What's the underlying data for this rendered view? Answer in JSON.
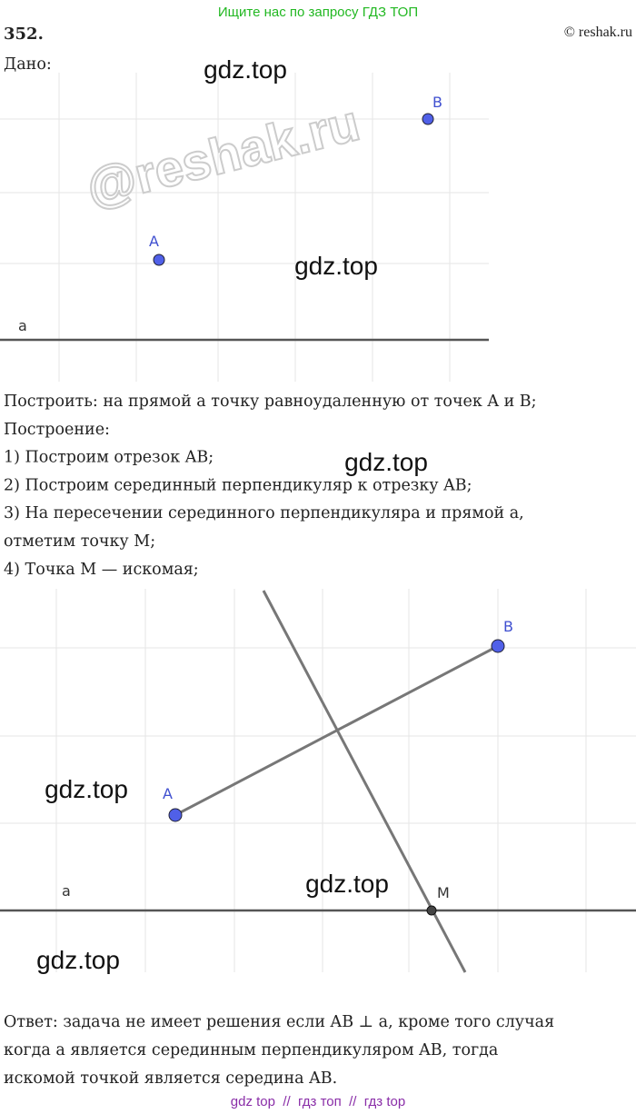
{
  "header": {
    "banner": "Ищите нас по запросу ГДЗ ТОП",
    "number": "352.",
    "copyright": "© reshak.ru"
  },
  "given": "Дано:",
  "figure1": {
    "point_a": "A",
    "point_b": "B",
    "line": "a"
  },
  "construction": [
    "Построить: на прямой a точку равноудаленную от точек A и B;",
    "Построение:",
    "1) Построим отрезок AB;",
    "2) Построим серединный перпендикуляр к отрезку AB;",
    "3) На пересечении серединного перпендикуляра и прямой a,",
    "отметим точку M;",
    "4) Точка M — искомая;"
  ],
  "figure2": {
    "point_a": "A",
    "point_b": "B",
    "point_m": "M",
    "line": "a"
  },
  "answer": [
    "Ответ: задача не имеет решения если AB ⊥ a, кроме того случая",
    "когда a является серединным перпендикуляром AB, тогда",
    "искомой точкой является середина AB."
  ],
  "watermarks": [
    "gdz.top",
    "gdz.top",
    "gdz.top",
    "gdz.top",
    "gdz.top",
    "gdz.top"
  ],
  "logo": "@reshak.ru",
  "footer": "gdz top  //  гдз топ  //  гдз top"
}
